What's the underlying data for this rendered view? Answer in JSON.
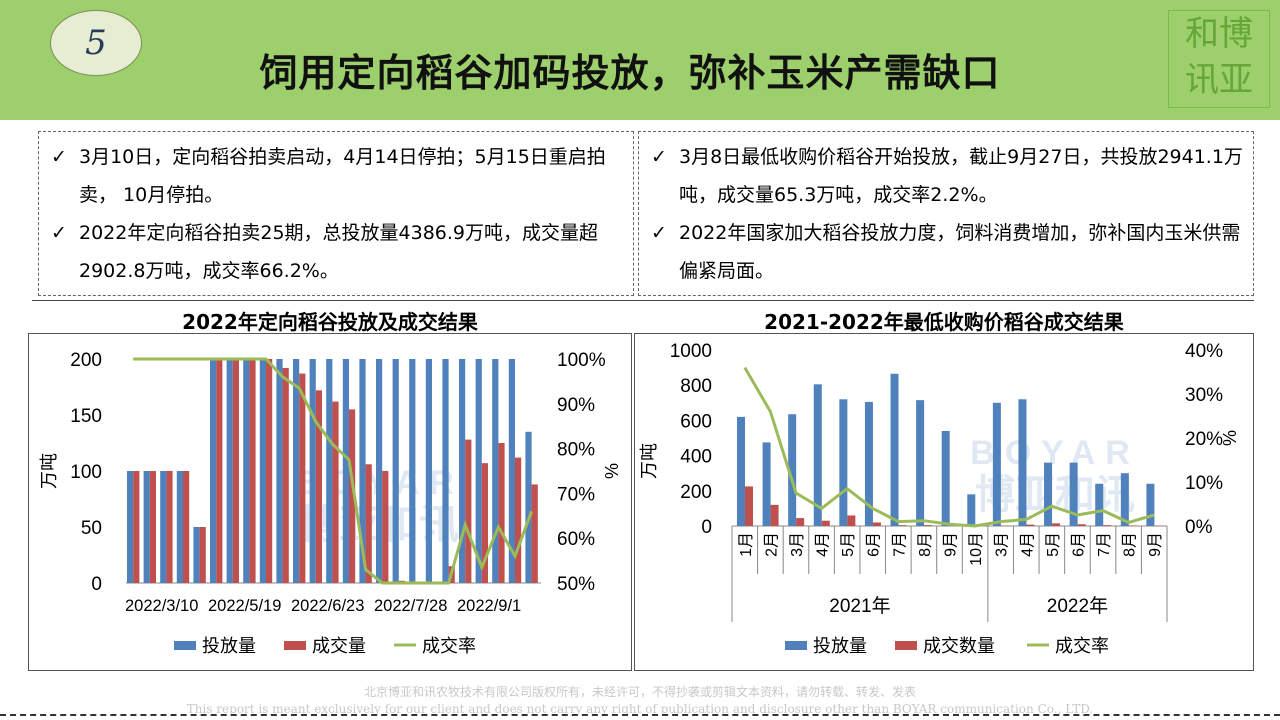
{
  "header": {
    "number": "5",
    "title": "饲用定向稻谷加码投放，弥补玉米产需缺口",
    "logo_chars": [
      "和",
      "博",
      "讯",
      "亚"
    ]
  },
  "left_box": {
    "check": "✓",
    "bullets": [
      "3月10日，定向稻谷拍卖启动，4月14日停拍；5月15日重启拍卖， 10月停拍。",
      "2022年定向稻谷拍卖25期，总投放量4386.9万吨，成交量超2902.8万吨，成交率66.2%。"
    ]
  },
  "right_box": {
    "check": "✓",
    "bullets": [
      "3月8日最低收购价稻谷开始投放，截止9月27日，共投放2941.1万吨，成交量65.3万吨，成交率2.2%。",
      "2022年国家加大稻谷投放力度，饲料消费增加，弥补国内玉米供需偏紧局面。"
    ]
  },
  "watermark": {
    "text": "BOYAR",
    "cn": "博亚和讯"
  },
  "chart_data": [
    {
      "type": "bar",
      "title": "2022年定向稻谷投放及成交结果",
      "ylabel": "万吨",
      "y2label": "%",
      "ylim": [
        0,
        200
      ],
      "yticks": [
        0,
        50,
        100,
        150,
        200
      ],
      "y2lim": [
        50,
        100
      ],
      "y2ticks": [
        "50%",
        "60%",
        "70%",
        "80%",
        "90%",
        "100%"
      ],
      "x_tick_labels": [
        "2022/3/10",
        "2022/5/19",
        "2022/6/23",
        "2022/7/28",
        "2022/9/1"
      ],
      "x_tick_positions": [
        0,
        5,
        10,
        15,
        20
      ],
      "colors": {
        "supply": "#4f81bd",
        "deal": "#c0504d",
        "rate": "#9bbb59"
      },
      "series": [
        {
          "name": "投放量",
          "values": [
            100,
            100,
            100,
            100,
            50,
            200,
            200,
            200,
            200,
            200,
            200,
            200,
            200,
            200,
            200,
            200,
            200,
            200,
            200,
            200,
            200,
            200,
            200,
            200,
            135
          ]
        },
        {
          "name": "成交量",
          "values": [
            100,
            100,
            100,
            100,
            50,
            200,
            200,
            200,
            200,
            192,
            187,
            172,
            162,
            155,
            106,
            100,
            2,
            0,
            0,
            15,
            128,
            107,
            125,
            112,
            88
          ]
        },
        {
          "name": "成交率",
          "values": [
            100,
            100,
            100,
            100,
            100,
            100,
            100,
            100,
            100,
            96,
            93.5,
            86,
            81,
            77.5,
            53,
            50,
            50,
            50,
            50,
            50,
            63,
            53.5,
            62.5,
            56,
            66
          ]
        }
      ]
    },
    {
      "type": "bar",
      "title": "2021-2022年最低收购价稻谷成交结果",
      "ylabel": "万吨",
      "y2label": "%",
      "ylim": [
        0,
        1000
      ],
      "yticks": [
        0,
        200,
        400,
        600,
        800,
        1000
      ],
      "y2lim": [
        0,
        40
      ],
      "y2ticks": [
        "0%",
        "10%",
        "20%",
        "30%",
        "40%"
      ],
      "categories": [
        "1月",
        "2月",
        "3月",
        "4月",
        "5月",
        "6月",
        "7月",
        "8月",
        "9月",
        "10月",
        "3月",
        "4月",
        "5月",
        "6月",
        "7月",
        "8月",
        "9月"
      ],
      "groups": [
        {
          "label": "2021年",
          "count": 10
        },
        {
          "label": "2022年",
          "count": 7
        }
      ],
      "colors": {
        "supply": "#4f81bd",
        "deal": "#c0504d",
        "rate": "#9bbb59"
      },
      "series": [
        {
          "name": "投放量",
          "values": [
            620,
            475,
            635,
            805,
            720,
            705,
            865,
            715,
            540,
            180,
            700,
            720,
            360,
            360,
            240,
            300,
            240
          ]
        },
        {
          "name": "成交数量",
          "values": [
            225,
            120,
            45,
            30,
            60,
            20,
            5,
            5,
            3,
            0,
            2,
            8,
            15,
            10,
            5,
            3,
            2
          ]
        },
        {
          "name": "成交率",
          "values": [
            36,
            26,
            7.5,
            4,
            8.5,
            4,
            1,
            1.2,
            0.4,
            0,
            1,
            1.5,
            4.5,
            2.5,
            3.5,
            0.8,
            2.5
          ]
        }
      ]
    }
  ],
  "footer": {
    "line1": "北京博亚和讯农牧技术有限公司版权所有，未经许可，不得抄袭或剪辑文本资料，请勿转载、转发、发表",
    "line2": "This report is meant exclusively for our client and does not carry any right of publication and disclosure other than BOYAR communication Co., LTD."
  }
}
